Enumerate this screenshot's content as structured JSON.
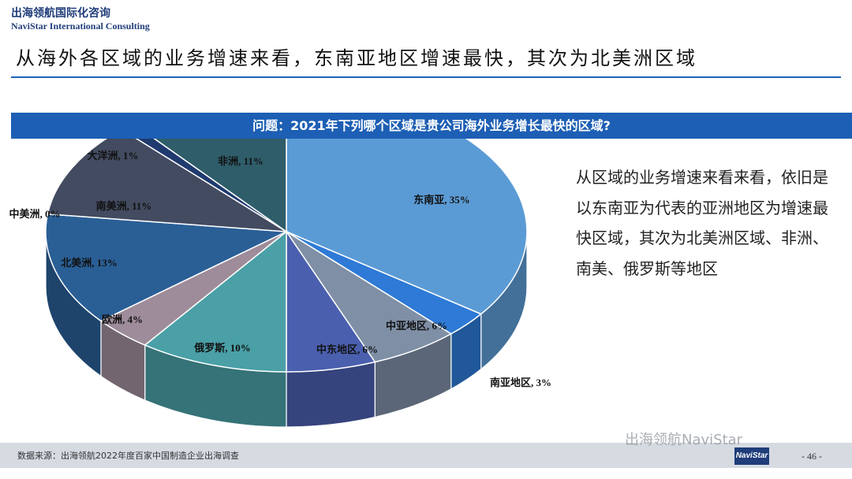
{
  "header": {
    "brand_cn": "出海领航国际化咨询",
    "brand_en": "NaviStar International Consulting",
    "heading": "从海外各区域的业务增速来看，东南亚地区增速最快，其次为北美洲区域"
  },
  "question": "问题：2021年下列哪个区域是贵公司海外业务增长最快的区域?",
  "note": "从区域的业务增速来看来看，依旧是以东南亚为代表的亚洲地区为增速最快区域，其次为北美洲区域、非洲、南美、俄罗斯等地区",
  "footer": {
    "source": "数据来源：出海领航2022年度百家中国制造企业出海调查",
    "watermark": "出海领航NaviStar",
    "logo_text": "NaviStar",
    "page": "- 46 -"
  },
  "chart_data": {
    "type": "pie",
    "title": "问题：2021年下列哪个区域是贵公司海外业务增长最快的区域?",
    "slices": [
      {
        "label": "东南亚",
        "value": 35,
        "text": "东南亚, 35%",
        "color": "#5b9bd5"
      },
      {
        "label": "南亚地区",
        "value": 3,
        "text": "南亚地区, 3%",
        "color": "#2e7ad6"
      },
      {
        "label": "中亚地区",
        "value": 6,
        "text": "中亚地区, 6%",
        "color": "#7f8fa6"
      },
      {
        "label": "中东地区",
        "value": 6,
        "text": "中东地区, 6%",
        "color": "#4a5fae"
      },
      {
        "label": "俄罗斯",
        "value": 10,
        "text": "俄罗斯, 10%",
        "color": "#4aa0a6"
      },
      {
        "label": "欧洲",
        "value": 4,
        "text": "欧洲, 4%",
        "color": "#9e8c9a"
      },
      {
        "label": "北美洲",
        "value": 13,
        "text": "北美洲, 13%",
        "color": "#2a5f96"
      },
      {
        "label": "中美洲",
        "value": 0,
        "text": "中美洲, 0%",
        "color": "#4a6a8a"
      },
      {
        "label": "南美洲",
        "value": 11,
        "text": "南美洲, 11%",
        "color": "#434b61"
      },
      {
        "label": "大洋洲",
        "value": 1,
        "text": "大洋洲, 1%",
        "color": "#1f3a6e"
      },
      {
        "label": "非洲",
        "value": 11,
        "text": "非洲, 11%",
        "color": "#2f5d6a"
      }
    ]
  }
}
